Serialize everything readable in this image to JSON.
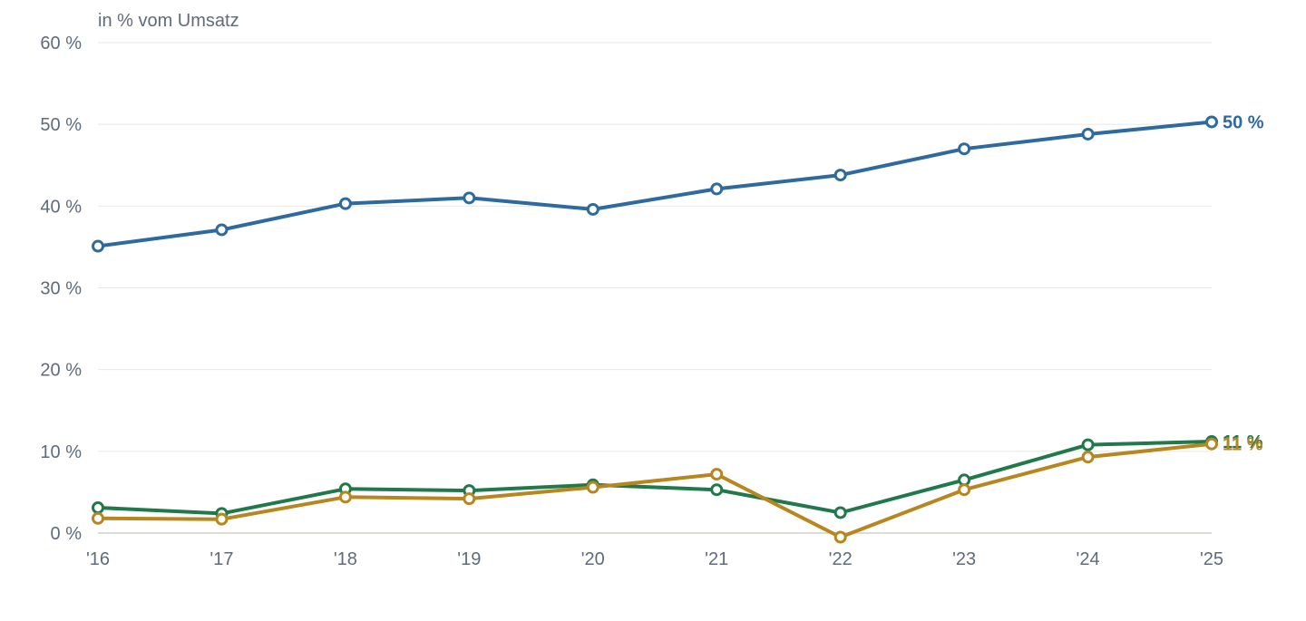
{
  "chart_data": {
    "type": "line",
    "unit_label": "in % vom Umsatz",
    "categories": [
      "'16",
      "'17",
      "'18",
      "'19",
      "'20",
      "'21",
      "'22",
      "'23",
      "'24",
      "'25"
    ],
    "ylim": [
      0,
      60
    ],
    "yticks": [
      0,
      10,
      20,
      30,
      40,
      50,
      60
    ],
    "ytick_labels": [
      "0 %",
      "10 %",
      "20 %",
      "30 %",
      "40 %",
      "50 %",
      "60 %"
    ],
    "grid": true,
    "legend": "none",
    "series": [
      {
        "color": "#2e6a9e",
        "values": [
          35.1,
          37.1,
          40.3,
          41.0,
          39.6,
          42.1,
          43.8,
          47.0,
          48.8,
          50.3
        ],
        "end_label": "50 %"
      },
      {
        "color": "#21784a",
        "values": [
          3.1,
          2.4,
          5.4,
          5.2,
          5.9,
          5.3,
          2.5,
          6.5,
          10.8,
          11.2
        ],
        "end_label": "11 %"
      },
      {
        "color": "#b8861f",
        "values": [
          1.8,
          1.7,
          4.4,
          4.2,
          5.6,
          7.2,
          -0.5,
          5.3,
          9.3,
          10.9
        ],
        "end_label": "11 %"
      }
    ]
  }
}
